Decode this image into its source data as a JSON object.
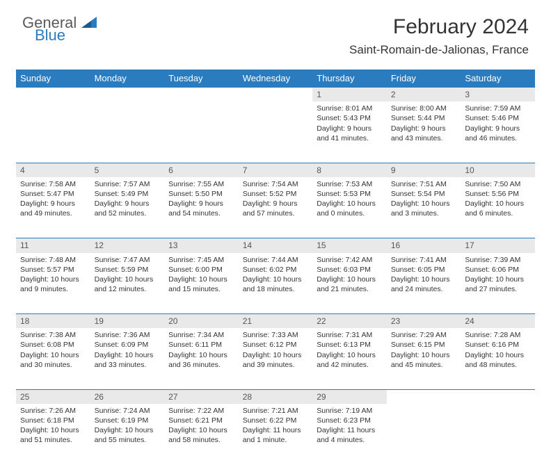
{
  "brand": {
    "part1": "General",
    "part2": "Blue"
  },
  "title": "February 2024",
  "location": "Saint-Romain-de-Jalionas, France",
  "colors": {
    "header_bg": "#2b7bbf",
    "header_text": "#ffffff",
    "daynum_bg": "#e9e9e9",
    "border": "#2b7bbf",
    "text": "#333333",
    "logo_gray": "#5a5a5a",
    "logo_blue": "#2b7bbf",
    "page_bg": "#ffffff"
  },
  "weekdays": [
    "Sunday",
    "Monday",
    "Tuesday",
    "Wednesday",
    "Thursday",
    "Friday",
    "Saturday"
  ],
  "weeks": [
    [
      null,
      null,
      null,
      null,
      {
        "n": "1",
        "sr": "8:01 AM",
        "ss": "5:43 PM",
        "dl": "9 hours and 41 minutes."
      },
      {
        "n": "2",
        "sr": "8:00 AM",
        "ss": "5:44 PM",
        "dl": "9 hours and 43 minutes."
      },
      {
        "n": "3",
        "sr": "7:59 AM",
        "ss": "5:46 PM",
        "dl": "9 hours and 46 minutes."
      }
    ],
    [
      {
        "n": "4",
        "sr": "7:58 AM",
        "ss": "5:47 PM",
        "dl": "9 hours and 49 minutes."
      },
      {
        "n": "5",
        "sr": "7:57 AM",
        "ss": "5:49 PM",
        "dl": "9 hours and 52 minutes."
      },
      {
        "n": "6",
        "sr": "7:55 AM",
        "ss": "5:50 PM",
        "dl": "9 hours and 54 minutes."
      },
      {
        "n": "7",
        "sr": "7:54 AM",
        "ss": "5:52 PM",
        "dl": "9 hours and 57 minutes."
      },
      {
        "n": "8",
        "sr": "7:53 AM",
        "ss": "5:53 PM",
        "dl": "10 hours and 0 minutes."
      },
      {
        "n": "9",
        "sr": "7:51 AM",
        "ss": "5:54 PM",
        "dl": "10 hours and 3 minutes."
      },
      {
        "n": "10",
        "sr": "7:50 AM",
        "ss": "5:56 PM",
        "dl": "10 hours and 6 minutes."
      }
    ],
    [
      {
        "n": "11",
        "sr": "7:48 AM",
        "ss": "5:57 PM",
        "dl": "10 hours and 9 minutes."
      },
      {
        "n": "12",
        "sr": "7:47 AM",
        "ss": "5:59 PM",
        "dl": "10 hours and 12 minutes."
      },
      {
        "n": "13",
        "sr": "7:45 AM",
        "ss": "6:00 PM",
        "dl": "10 hours and 15 minutes."
      },
      {
        "n": "14",
        "sr": "7:44 AM",
        "ss": "6:02 PM",
        "dl": "10 hours and 18 minutes."
      },
      {
        "n": "15",
        "sr": "7:42 AM",
        "ss": "6:03 PM",
        "dl": "10 hours and 21 minutes."
      },
      {
        "n": "16",
        "sr": "7:41 AM",
        "ss": "6:05 PM",
        "dl": "10 hours and 24 minutes."
      },
      {
        "n": "17",
        "sr": "7:39 AM",
        "ss": "6:06 PM",
        "dl": "10 hours and 27 minutes."
      }
    ],
    [
      {
        "n": "18",
        "sr": "7:38 AM",
        "ss": "6:08 PM",
        "dl": "10 hours and 30 minutes."
      },
      {
        "n": "19",
        "sr": "7:36 AM",
        "ss": "6:09 PM",
        "dl": "10 hours and 33 minutes."
      },
      {
        "n": "20",
        "sr": "7:34 AM",
        "ss": "6:11 PM",
        "dl": "10 hours and 36 minutes."
      },
      {
        "n": "21",
        "sr": "7:33 AM",
        "ss": "6:12 PM",
        "dl": "10 hours and 39 minutes."
      },
      {
        "n": "22",
        "sr": "7:31 AM",
        "ss": "6:13 PM",
        "dl": "10 hours and 42 minutes."
      },
      {
        "n": "23",
        "sr": "7:29 AM",
        "ss": "6:15 PM",
        "dl": "10 hours and 45 minutes."
      },
      {
        "n": "24",
        "sr": "7:28 AM",
        "ss": "6:16 PM",
        "dl": "10 hours and 48 minutes."
      }
    ],
    [
      {
        "n": "25",
        "sr": "7:26 AM",
        "ss": "6:18 PM",
        "dl": "10 hours and 51 minutes."
      },
      {
        "n": "26",
        "sr": "7:24 AM",
        "ss": "6:19 PM",
        "dl": "10 hours and 55 minutes."
      },
      {
        "n": "27",
        "sr": "7:22 AM",
        "ss": "6:21 PM",
        "dl": "10 hours and 58 minutes."
      },
      {
        "n": "28",
        "sr": "7:21 AM",
        "ss": "6:22 PM",
        "dl": "11 hours and 1 minute."
      },
      {
        "n": "29",
        "sr": "7:19 AM",
        "ss": "6:23 PM",
        "dl": "11 hours and 4 minutes."
      },
      null,
      null
    ]
  ],
  "labels": {
    "sunrise": "Sunrise:",
    "sunset": "Sunset:",
    "daylight": "Daylight:"
  }
}
